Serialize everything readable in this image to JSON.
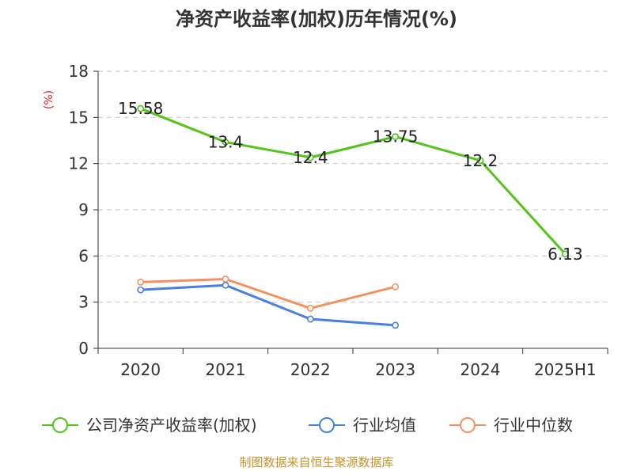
{
  "chart_data": {
    "type": "line",
    "title": "净资产收益率(加权)历年情况(%)",
    "ylabel": "(%)",
    "categories": [
      "2020",
      "2021",
      "2022",
      "2023",
      "2024",
      "2025H1"
    ],
    "ylim": [
      0,
      18
    ],
    "yticks": [
      "0",
      "3",
      "6",
      "9",
      "12",
      "15",
      "18"
    ],
    "grid": true,
    "legend_position": "bottom",
    "series": [
      {
        "name": "公司净资产收益率(加权)",
        "color": "#52c41a",
        "values": [
          15.58,
          13.4,
          12.4,
          13.75,
          12.2,
          6.13
        ],
        "labels": [
          "15.58",
          "13.4",
          "12.4",
          "13.75",
          "12.2",
          "6.13"
        ]
      },
      {
        "name": "行业均值",
        "color": "#4a7fe0",
        "values": [
          3.8,
          4.1,
          1.9,
          1.5,
          null,
          null
        ]
      },
      {
        "name": "行业中位数",
        "color": "#f5915f",
        "values": [
          4.3,
          4.5,
          2.6,
          4.0,
          null,
          null
        ]
      }
    ]
  },
  "colors": {
    "ylabel": "#e02020",
    "source": "#c8922a",
    "grid": "#cccccc",
    "axis": "#333333"
  },
  "source_text": "制图数据来自恒生聚源数据库"
}
